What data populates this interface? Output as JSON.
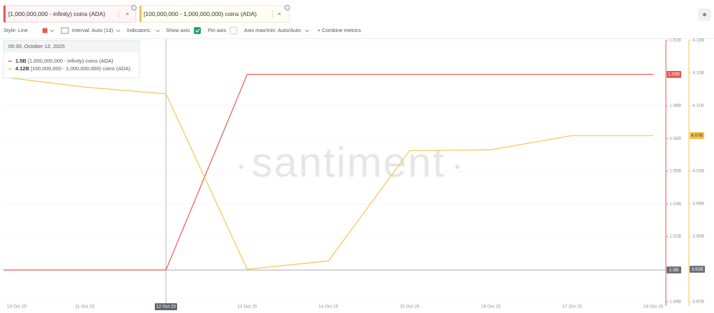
{
  "toolbar": {
    "style": "Style: Line",
    "interval": "Interval: Auto (1d)",
    "indicators": "Indicators:",
    "show_axis": "Show axis",
    "pin_axis": "Pin axis",
    "axis_range": "Axis max/min: Auto/Auto",
    "combine": "+ Combine metrics"
  },
  "tooltip": {
    "title": "05:30, October 12, 2025"
  },
  "chart_data": {
    "type": "line",
    "watermark": "santiment",
    "categories": [
      "10 Oct 25",
      "11 Oct 25",
      "12 Oct 25",
      "13 Oct 25",
      "14 Oct 25",
      "15 Oct 25",
      "16 Oct 25",
      "17 Oct 25",
      "18 Oct 25"
    ],
    "series": [
      {
        "name": "[1,000,000,000 - infinity) coins (ADA)",
        "color": "#e9574f",
        "values": [
          1.5,
          1.5,
          1.5,
          1.59,
          1.59,
          1.59,
          1.59,
          1.59,
          1.59
        ],
        "value_labels": [
          null,
          null,
          "1.5B",
          null,
          null,
          null,
          null,
          null,
          "1.59B"
        ]
      },
      {
        "name": "[100,000,000 - 1,000,000,000) coins (ADA)",
        "color": "#f5c54a",
        "axis": "y2",
        "values": [
          4.14,
          4.128,
          4.12,
          3.91,
          3.92,
          4.052,
          4.053,
          4.07,
          4.07
        ],
        "value_labels": [
          null,
          null,
          "4.12B",
          null,
          null,
          null,
          null,
          null,
          "4.07B"
        ]
      }
    ],
    "ylim": [
      1.4853,
      1.6057
    ],
    "yticks": [
      {
        "value": 1.4853,
        "label": "1.49B"
      },
      {
        "value": 1.5154,
        "label": "1.52B"
      },
      {
        "value": 1.5304,
        "label": "1.53B"
      },
      {
        "value": 1.5455,
        "label": "1.55B"
      },
      {
        "value": 1.5605,
        "label": "1.56B"
      },
      {
        "value": 1.5756,
        "label": "1.58B"
      },
      {
        "value": 1.6057,
        "label": "1.61B"
      }
    ],
    "y2lim": [
      3.871,
      4.184
    ],
    "y2ticks": [
      {
        "value": 3.871,
        "label": "3.87B"
      },
      {
        "value": 3.9493,
        "label": "3.95B"
      },
      {
        "value": 3.9884,
        "label": "3.99B"
      },
      {
        "value": 4.0275,
        "label": "4.03B"
      },
      {
        "value": 4.1058,
        "label": "4.11B"
      },
      {
        "value": 4.1451,
        "label": "4.15B"
      },
      {
        "value": 4.184,
        "label": "4.18B"
      }
    ],
    "grid": true,
    "crosshair": {
      "category": "12 Oct 25",
      "y": 1.5,
      "y_label": "1.5B",
      "y2": 3.91,
      "y2_label": "3.91B"
    }
  }
}
